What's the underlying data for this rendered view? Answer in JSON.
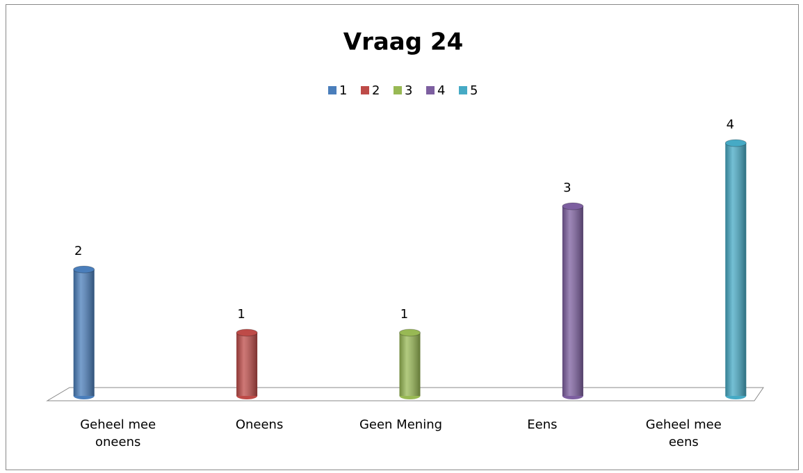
{
  "chart_data": {
    "type": "bar3d",
    "title": "Vraag 24",
    "categories": [
      "Geheel mee\noneens",
      "Oneens",
      "Geen Mening",
      "Eens",
      "Geheel mee\neens"
    ],
    "series": [
      {
        "name": "1",
        "color": "#4a7ebb",
        "values": [
          2,
          null,
          null,
          null,
          null
        ]
      },
      {
        "name": "2",
        "color": "#be4b48",
        "values": [
          null,
          1,
          null,
          null,
          null
        ]
      },
      {
        "name": "3",
        "color": "#98b954",
        "values": [
          null,
          null,
          1,
          null,
          null
        ]
      },
      {
        "name": "4",
        "color": "#7d5fa0",
        "values": [
          null,
          null,
          null,
          3,
          null
        ]
      },
      {
        "name": "5",
        "color": "#46aac5",
        "values": [
          null,
          null,
          null,
          null,
          4
        ]
      }
    ],
    "ylim": [
      0,
      4
    ],
    "legend": "top"
  }
}
